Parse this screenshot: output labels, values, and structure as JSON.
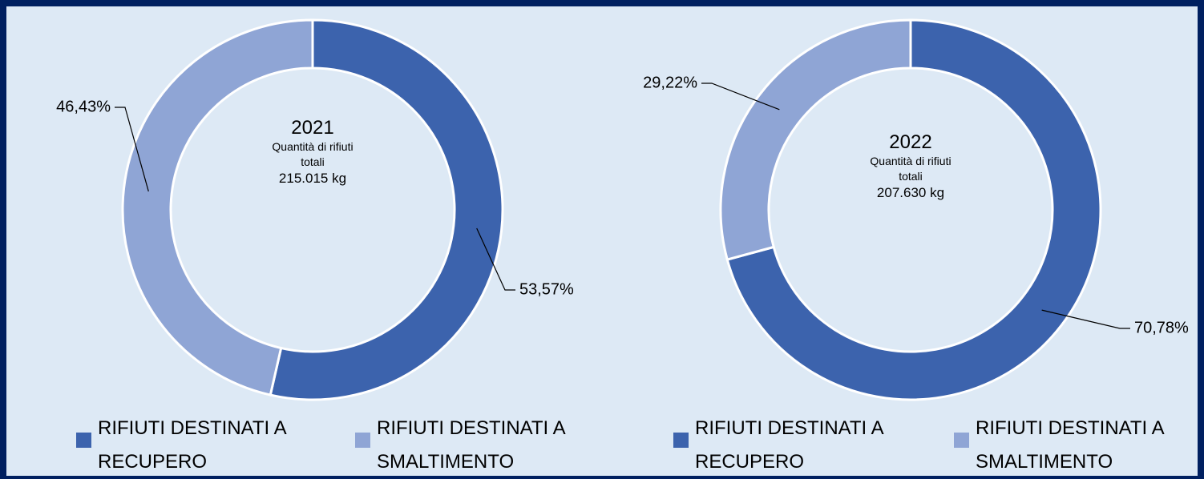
{
  "chart_data": [
    {
      "type": "pie",
      "donut": true,
      "center_title": "2021",
      "center_subtitle": "Quantità di rifiuti totali",
      "center_value": "215.015 kg",
      "categories": [
        "RIFIUTI DESTINATI A RECUPERO",
        "RIFIUTI DESTINATI A SMALTIMENTO"
      ],
      "values": [
        53.57,
        46.43
      ],
      "value_labels": [
        "53,57%",
        "46,43%"
      ],
      "colors": [
        "#3c63ad",
        "#8fa5d5"
      ]
    },
    {
      "type": "pie",
      "donut": true,
      "center_title": "2022",
      "center_subtitle": "Quantità di rifiuti totali",
      "center_value": "207.630 kg",
      "categories": [
        "RIFIUTI DESTINATI A RECUPERO",
        "RIFIUTI DESTINATI A SMALTIMENTO"
      ],
      "values": [
        70.78,
        29.22
      ],
      "value_labels": [
        "70,78%",
        "29,22%"
      ],
      "colors": [
        "#3c63ad",
        "#8fa5d5"
      ]
    }
  ]
}
